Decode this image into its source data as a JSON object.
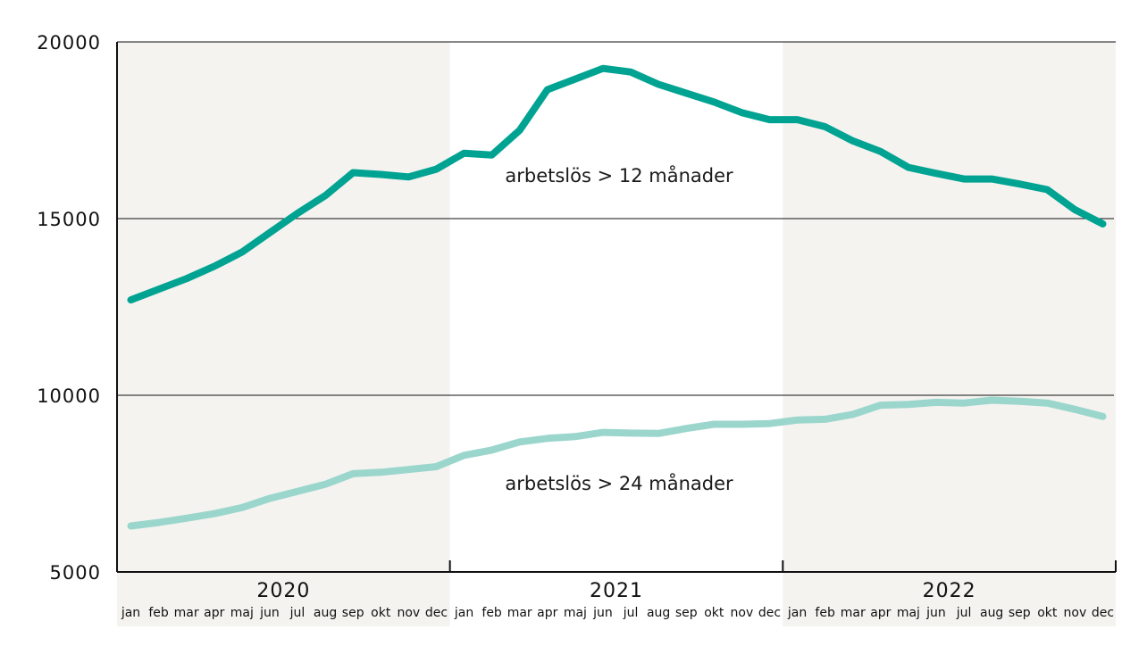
{
  "chart_data": {
    "type": "line",
    "title": "",
    "xlabel": "",
    "ylabel": "",
    "ylim": [
      5000,
      20000
    ],
    "yticks": [
      5000,
      10000,
      15000,
      20000
    ],
    "grid": true,
    "years": [
      "2020",
      "2021",
      "2022"
    ],
    "months": [
      "jan",
      "feb",
      "mar",
      "apr",
      "maj",
      "jun",
      "jul",
      "aug",
      "sep",
      "okt",
      "nov",
      "dec"
    ],
    "band_colors": [
      "#f4f3f0",
      "#ffffff",
      "#f4f3f0"
    ],
    "series": [
      {
        "name": "arbetslös > 12 månader",
        "color": "#00a392",
        "values": [
          12700,
          13000,
          13300,
          13650,
          14050,
          14600,
          15150,
          15650,
          16300,
          16250,
          16180,
          16400,
          16850,
          16800,
          17500,
          18650,
          18950,
          19250,
          19150,
          18800,
          18550,
          18300,
          18000,
          17800,
          17800,
          17600,
          17200,
          16900,
          16450,
          16280,
          16120,
          16120,
          15980,
          15820,
          15250,
          14850
        ]
      },
      {
        "name": "arbetslös > 24 månader",
        "color": "#9bd6cd",
        "values": [
          6300,
          6400,
          6520,
          6650,
          6820,
          7080,
          7280,
          7480,
          7780,
          7820,
          7900,
          7980,
          8300,
          8450,
          8680,
          8780,
          8830,
          8950,
          8930,
          8920,
          9060,
          9180,
          9180,
          9200,
          9300,
          9320,
          9460,
          9720,
          9740,
          9800,
          9780,
          9860,
          9830,
          9780,
          9600,
          9400
        ]
      }
    ]
  }
}
